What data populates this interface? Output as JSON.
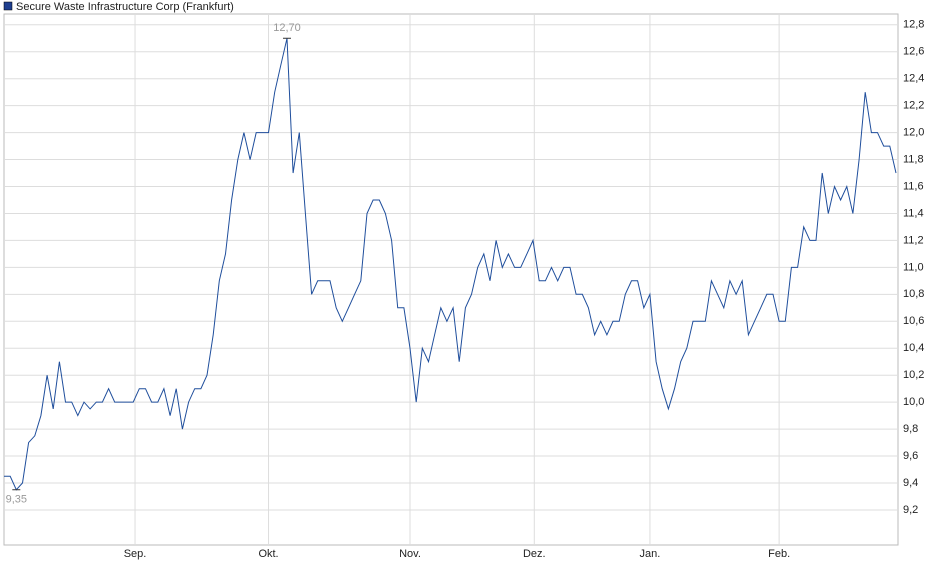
{
  "chart_data": {
    "type": "line",
    "legend_label": "Secure Waste Infrastructure Corp (Frankfurt)",
    "color": "#1f4e9c",
    "grid": true,
    "xlim": [
      0,
      145
    ],
    "xticks": [
      {
        "value": 21.3,
        "label": "Sep."
      },
      {
        "value": 43,
        "label": "Okt."
      },
      {
        "value": 66,
        "label": "Nov."
      },
      {
        "value": 86.2,
        "label": "Dez."
      },
      {
        "value": 105,
        "label": "Jan."
      },
      {
        "value": 126,
        "label": "Feb."
      }
    ],
    "ylim": [
      8.94,
      12.88
    ],
    "yticks": [
      {
        "value": 9.2,
        "label": "9,2"
      },
      {
        "value": 9.4,
        "label": "9,4"
      },
      {
        "value": 9.6,
        "label": "9,6"
      },
      {
        "value": 9.8,
        "label": "9,8"
      },
      {
        "value": 10.0,
        "label": "10,0"
      },
      {
        "value": 10.2,
        "label": "10,2"
      },
      {
        "value": 10.4,
        "label": "10,4"
      },
      {
        "value": 10.6,
        "label": "10,6"
      },
      {
        "value": 10.8,
        "label": "10,8"
      },
      {
        "value": 11.0,
        "label": "11,0"
      },
      {
        "value": 11.2,
        "label": "11,2"
      },
      {
        "value": 11.4,
        "label": "11,4"
      },
      {
        "value": 11.6,
        "label": "11,6"
      },
      {
        "value": 11.8,
        "label": "11,8"
      },
      {
        "value": 12.0,
        "label": "12,0"
      },
      {
        "value": 12.2,
        "label": "12,2"
      },
      {
        "value": 12.4,
        "label": "12,4"
      },
      {
        "value": 12.6,
        "label": "12,6"
      },
      {
        "value": 12.8,
        "label": "12,8"
      }
    ],
    "values": [
      9.45,
      9.45,
      9.35,
      9.4,
      9.7,
      9.75,
      9.9,
      10.2,
      9.95,
      10.3,
      10.0,
      10.0,
      9.9,
      10.0,
      9.95,
      10.0,
      10.0,
      10.1,
      10.0,
      10.0,
      10.0,
      10.0,
      10.1,
      10.1,
      10.0,
      10.0,
      10.1,
      9.9,
      10.1,
      9.8,
      10.0,
      10.1,
      10.1,
      10.2,
      10.5,
      10.9,
      11.1,
      11.5,
      11.8,
      12.0,
      11.8,
      12.0,
      12.0,
      12.0,
      12.3,
      12.5,
      12.7,
      11.7,
      12.0,
      11.4,
      10.8,
      10.9,
      10.9,
      10.9,
      10.7,
      10.6,
      10.7,
      10.8,
      10.9,
      11.4,
      11.5,
      11.5,
      11.4,
      11.2,
      10.7,
      10.7,
      10.4,
      10.0,
      10.4,
      10.3,
      10.5,
      10.7,
      10.6,
      10.7,
      10.3,
      10.7,
      10.8,
      11.0,
      11.1,
      10.9,
      11.2,
      11.0,
      11.1,
      11.0,
      11.0,
      11.1,
      11.2,
      10.9,
      10.9,
      11.0,
      10.9,
      11.0,
      11.0,
      10.8,
      10.8,
      10.7,
      10.5,
      10.6,
      10.5,
      10.6,
      10.6,
      10.8,
      10.9,
      10.9,
      10.7,
      10.8,
      10.3,
      10.1,
      9.95,
      10.1,
      10.3,
      10.4,
      10.6,
      10.6,
      10.6,
      10.9,
      10.8,
      10.7,
      10.9,
      10.8,
      10.9,
      10.5,
      10.6,
      10.7,
      10.8,
      10.8,
      10.6,
      10.6,
      11.0,
      11.0,
      11.3,
      11.2,
      11.2,
      11.7,
      11.4,
      11.6,
      11.5,
      11.6,
      11.4,
      11.8,
      12.3,
      12.0,
      12.0,
      11.9,
      11.9,
      11.7
    ],
    "annotations": [
      {
        "x": 46,
        "value": 12.7,
        "label": "12,70",
        "position": "above"
      },
      {
        "x": 2,
        "value": 9.35,
        "label": "9,35",
        "position": "below"
      }
    ]
  }
}
